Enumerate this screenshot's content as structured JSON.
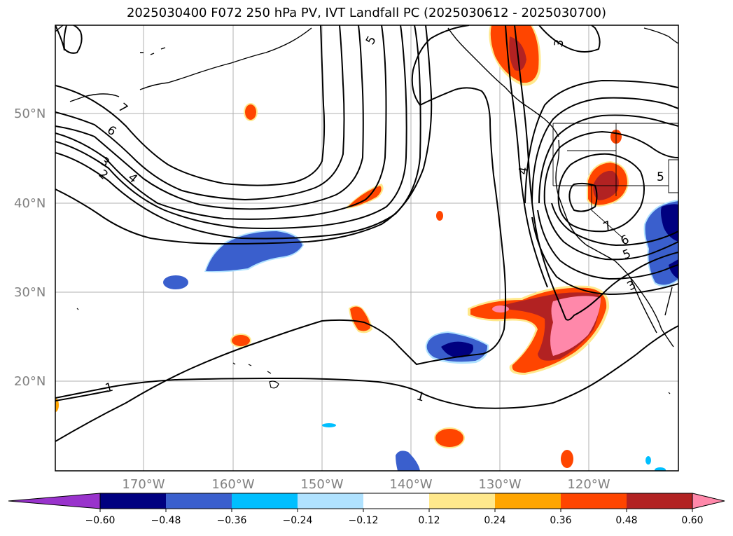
{
  "title": "2025030400 F072 250 hPa PV, IVT Landfall PC (2025030612 - 2025030700)",
  "lat_labels": [
    "50°N",
    "40°N",
    "30°N",
    "20°N"
  ],
  "lon_labels": [
    "170°W",
    "160°W",
    "150°W",
    "140°W",
    "130°W",
    "120°W"
  ],
  "contour_labels": [
    "7",
    "6",
    "5",
    "4",
    "3",
    "2",
    "5",
    "4",
    "3",
    "7",
    "6",
    "5",
    "3",
    "1",
    "1"
  ],
  "colorbar": {
    "ticks": [
      "−0.60",
      "−0.48",
      "−0.36",
      "−0.24",
      "−0.12",
      "0.12",
      "0.24",
      "0.36",
      "0.48",
      "0.60"
    ],
    "colors": [
      "#9933cc",
      "#000080",
      "#3a5fcd",
      "#00bfff",
      "#b0e2ff",
      "#ffffff",
      "#ffe88c",
      "#ffa500",
      "#ff4500",
      "#b22222",
      "#ff88aa"
    ]
  },
  "colors": {
    "frame": "#000000",
    "grid": "#b0b0b0",
    "contour": "#000000",
    "pos1": "#ffe88c",
    "pos2": "#ffa500",
    "pos3": "#ff4500",
    "pos4": "#b22222",
    "pos5": "#ff88aa",
    "neg1": "#b0e2ff",
    "neg2": "#00bfff",
    "neg3": "#3a5fcd",
    "neg4": "#000080"
  }
}
